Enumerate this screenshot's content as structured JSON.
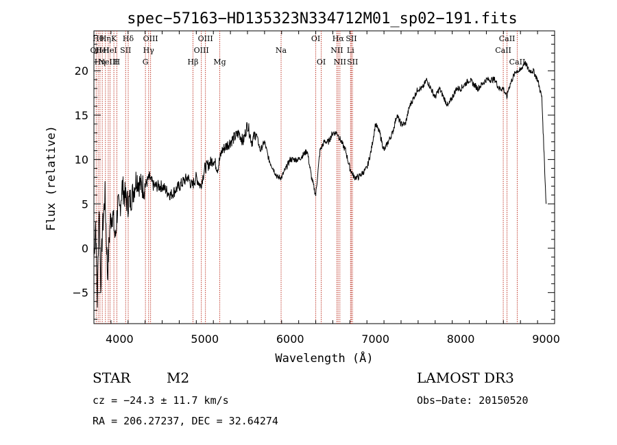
{
  "chart_data": {
    "type": "line",
    "title": "spec−57163−HD135323N334712M01_sp02−191.fits",
    "xlabel": "Wavelength (Å)",
    "ylabel": "Flux (relative)",
    "xlim": [
      3700,
      9100
    ],
    "ylim": [
      -8.5,
      24.5
    ],
    "xticks": [
      4000,
      5000,
      6000,
      7000,
      8000,
      9000
    ],
    "yticks": [
      -5,
      0,
      5,
      10,
      15,
      20
    ],
    "ytick_labels": [
      "−5",
      "0",
      "5",
      "10",
      "15",
      "20"
    ],
    "grid": false,
    "series": [
      {
        "name": "flux",
        "x": [
          3700,
          3720,
          3740,
          3760,
          3780,
          3800,
          3830,
          3860,
          3890,
          3920,
          3950,
          3980,
          4000,
          4030,
          4060,
          4100,
          4150,
          4200,
          4250,
          4300,
          4350,
          4400,
          4500,
          4600,
          4700,
          4800,
          4850,
          4900,
          4950,
          5000,
          5100,
          5150,
          5200,
          5300,
          5400,
          5450,
          5500,
          5550,
          5600,
          5650,
          5700,
          5750,
          5800,
          5850,
          5900,
          5950,
          6000,
          6100,
          6200,
          6250,
          6300,
          6350,
          6400,
          6450,
          6500,
          6550,
          6600,
          6650,
          6700,
          6750,
          6800,
          6850,
          6900,
          6950,
          7000,
          7050,
          7100,
          7150,
          7200,
          7250,
          7300,
          7350,
          7400,
          7450,
          7500,
          7550,
          7600,
          7650,
          7700,
          7750,
          7800,
          7850,
          7900,
          7950,
          8000,
          8100,
          8200,
          8300,
          8400,
          8450,
          8500,
          8540,
          8560,
          8600,
          8650,
          8700,
          8750,
          8800,
          8850,
          8900,
          8950,
          9000
        ],
        "y": [
          -1,
          3,
          -6,
          5,
          -4,
          2,
          6,
          -3,
          3,
          4,
          1,
          5,
          4,
          7,
          6,
          5,
          6,
          8,
          7,
          7,
          8,
          7,
          7,
          6,
          7,
          8,
          7,
          8,
          7,
          9,
          10,
          9,
          11,
          12,
          13,
          12,
          14,
          12,
          13,
          11,
          12,
          10,
          9,
          8,
          8,
          9,
          10,
          10,
          11,
          8,
          6,
          11,
          12,
          12,
          13,
          13,
          12,
          11,
          9,
          8,
          8,
          8.5,
          9,
          11,
          14,
          13,
          11,
          12,
          13,
          15,
          14,
          14,
          16,
          17,
          18,
          18,
          19,
          18,
          17,
          18,
          17,
          16,
          17,
          18,
          18,
          19,
          18,
          19,
          19,
          18,
          18,
          17,
          18,
          19,
          20,
          20,
          21,
          20,
          20,
          19,
          17,
          5
        ]
      }
    ],
    "lines": [
      {
        "x": 3727,
        "label": "OII",
        "row": 1
      },
      {
        "x": 3750,
        "label": "Hθ",
        "row": 0
      },
      {
        "x": 3771,
        "label": "Hη",
        "row": 2
      },
      {
        "x": 3798,
        "label": "HeI",
        "row": 1
      },
      {
        "x": 3835,
        "label": "Hη",
        "row": 0
      },
      {
        "x": 3868,
        "label": "NeIII",
        "row": 2
      },
      {
        "x": 3889,
        "label": "HeI",
        "row": 1
      },
      {
        "x": 3934,
        "label": "K",
        "row": 0
      },
      {
        "x": 3969,
        "label": "H",
        "row": 2
      },
      {
        "x": 4072,
        "label": "SII",
        "row": 1
      },
      {
        "x": 4102,
        "label": "Hδ",
        "row": 0
      },
      {
        "x": 4304,
        "label": "G",
        "row": 2
      },
      {
        "x": 4341,
        "label": "Hγ",
        "row": 1
      },
      {
        "x": 4364,
        "label": "OIII",
        "row": 0
      },
      {
        "x": 4861,
        "label": "Hβ",
        "row": 2
      },
      {
        "x": 4959,
        "label": "OIII",
        "row": 1
      },
      {
        "x": 5007,
        "label": "OIII",
        "row": 0
      },
      {
        "x": 5175,
        "label": "Mg",
        "row": 2
      },
      {
        "x": 5894,
        "label": "Na",
        "row": 1
      },
      {
        "x": 6300,
        "label": "OI",
        "row": 0
      },
      {
        "x": 6364,
        "label": "OI",
        "row": 2
      },
      {
        "x": 6548,
        "label": "NII",
        "row": 1
      },
      {
        "x": 6563,
        "label": "Hα",
        "row": 0
      },
      {
        "x": 6583,
        "label": "NII",
        "row": 2
      },
      {
        "x": 6708,
        "label": "Li",
        "row": 1
      },
      {
        "x": 6717,
        "label": "SII",
        "row": 0
      },
      {
        "x": 6731,
        "label": "SII",
        "row": 2
      },
      {
        "x": 8498,
        "label": "CaII",
        "row": 1
      },
      {
        "x": 8542,
        "label": "CaII",
        "row": 0
      },
      {
        "x": 8662,
        "label": "CaII",
        "row": 2
      }
    ]
  },
  "footer": {
    "object_class": "STAR",
    "subclass": "M2",
    "redshift_line": "cz = −24.3 ± 11.7 km/s",
    "coords_line": "RA = 206.27237, DEC =  32.64274",
    "survey": "LAMOST DR3",
    "obs_date": "Obs−Date: 20150520"
  },
  "colors": {
    "line_marker": "#c0392b",
    "spectrum": "#000000"
  }
}
